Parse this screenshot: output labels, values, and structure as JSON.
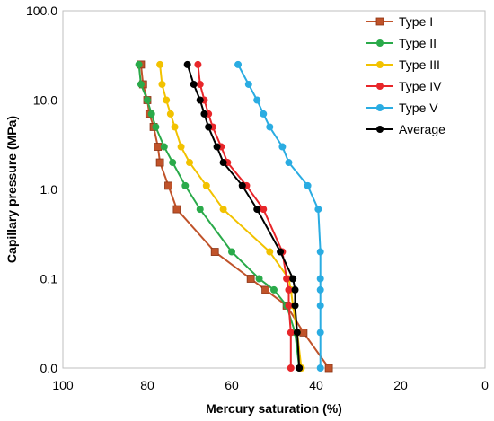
{
  "chart_data": {
    "type": "line",
    "title": "",
    "xlabel": "Mercury saturation (%)",
    "ylabel": "Capillary pressure (MPa)",
    "xlim": [
      100,
      0
    ],
    "x_reversed": true,
    "y_scale": "log",
    "y_axis_note": "bottom tick labeled 0.0 placed one decade below 0.1",
    "xticks": [
      "100",
      "80",
      "60",
      "40",
      "20",
      "0"
    ],
    "yticks": [
      "0.0",
      "0.1",
      "1.0",
      "10.0",
      "100.0"
    ],
    "grid": false,
    "legend_position": "top-right",
    "series": [
      {
        "name": "Type I",
        "color": "#C0532A",
        "marker": "square",
        "points": [
          [
            81.5,
            25
          ],
          [
            81,
            15
          ],
          [
            80,
            10
          ],
          [
            79.5,
            7
          ],
          [
            78.5,
            5
          ],
          [
            77.5,
            3
          ],
          [
            77,
            2
          ],
          [
            75,
            1.1
          ],
          [
            73,
            0.6
          ],
          [
            64,
            0.2
          ],
          [
            55.5,
            0.1
          ],
          [
            52,
            0.075
          ],
          [
            47,
            0.05
          ],
          [
            43,
            0.025
          ],
          [
            37,
            0.01
          ]
        ]
      },
      {
        "name": "Type II",
        "color": "#2AAA4A",
        "marker": "circle",
        "points": [
          [
            82,
            25
          ],
          [
            81.5,
            15
          ],
          [
            80,
            10
          ],
          [
            79,
            7
          ],
          [
            78,
            5
          ],
          [
            76,
            3
          ],
          [
            74,
            2
          ],
          [
            71,
            1.1
          ],
          [
            67.5,
            0.6
          ],
          [
            60,
            0.2
          ],
          [
            53.5,
            0.1
          ],
          [
            50,
            0.075
          ],
          [
            47,
            0.05
          ],
          [
            45,
            0.025
          ],
          [
            44,
            0.01
          ]
        ]
      },
      {
        "name": "Type III",
        "color": "#F2C200",
        "marker": "circle",
        "points": [
          [
            77,
            25
          ],
          [
            76.5,
            15
          ],
          [
            75.5,
            10
          ],
          [
            74.5,
            7
          ],
          [
            73.5,
            5
          ],
          [
            72,
            3
          ],
          [
            70,
            2
          ],
          [
            66,
            1.1
          ],
          [
            62,
            0.6
          ],
          [
            51,
            0.2
          ],
          [
            46.5,
            0.1
          ],
          [
            46,
            0.075
          ],
          [
            45.5,
            0.05
          ],
          [
            44.5,
            0.025
          ],
          [
            43.5,
            0.01
          ]
        ]
      },
      {
        "name": "Type IV",
        "color": "#E8262A",
        "marker": "circle",
        "points": [
          [
            68,
            25
          ],
          [
            67.5,
            15
          ],
          [
            66.5,
            10
          ],
          [
            65.5,
            7
          ],
          [
            64.5,
            5
          ],
          [
            62.5,
            3
          ],
          [
            61,
            2
          ],
          [
            56.5,
            1.1
          ],
          [
            52.5,
            0.6
          ],
          [
            48,
            0.2
          ],
          [
            47,
            0.1
          ],
          [
            46.5,
            0.075
          ],
          [
            46.5,
            0.05
          ],
          [
            46,
            0.025
          ],
          [
            46,
            0.01
          ]
        ]
      },
      {
        "name": "Type V",
        "color": "#2AACE2",
        "marker": "circle",
        "points": [
          [
            58.5,
            25
          ],
          [
            56,
            15
          ],
          [
            54,
            10
          ],
          [
            52.5,
            7
          ],
          [
            51,
            5
          ],
          [
            48,
            3
          ],
          [
            46.5,
            2
          ],
          [
            42,
            1.1
          ],
          [
            39.5,
            0.6
          ],
          [
            39,
            0.2
          ],
          [
            39,
            0.1
          ],
          [
            39,
            0.075
          ],
          [
            39,
            0.05
          ],
          [
            39,
            0.025
          ],
          [
            39,
            0.01
          ]
        ]
      },
      {
        "name": "Average",
        "color": "#000000",
        "marker": "circle",
        "points": [
          [
            70.5,
            25
          ],
          [
            69,
            15
          ],
          [
            67.5,
            10
          ],
          [
            66.5,
            7
          ],
          [
            65.5,
            5
          ],
          [
            63.5,
            3
          ],
          [
            62,
            2
          ],
          [
            57.5,
            1.1
          ],
          [
            54,
            0.6
          ],
          [
            48.5,
            0.2
          ],
          [
            45.5,
            0.1
          ],
          [
            45,
            0.075
          ],
          [
            45,
            0.05
          ],
          [
            44.5,
            0.025
          ],
          [
            44,
            0.01
          ]
        ]
      }
    ]
  }
}
